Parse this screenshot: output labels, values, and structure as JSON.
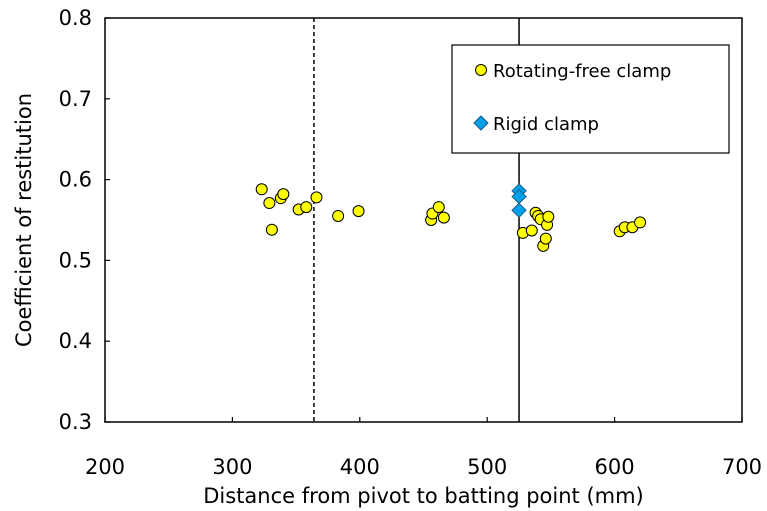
{
  "chart_data": {
    "type": "scatter",
    "title": "",
    "xlabel": "Distance from pivot to batting point (mm)",
    "ylabel": "Coefficient of restitution",
    "xlim": [
      200,
      700
    ],
    "ylim": [
      0.3,
      0.8
    ],
    "x_ticks": [
      "200",
      "300",
      "400",
      "500",
      "600",
      "700"
    ],
    "y_ticks": [
      "0.3",
      "0.4",
      "0.5",
      "0.6",
      "0.7",
      "0.8"
    ],
    "grid": false,
    "legend_position": "top-right",
    "reference_lines": [
      {
        "x": 364,
        "style": "dashed",
        "color": "#000000"
      },
      {
        "x": 525,
        "style": "solid",
        "color": "#000000"
      }
    ],
    "series": [
      {
        "name": "Rotating-free clamp",
        "marker": "circle",
        "color": "#ffff00",
        "points": [
          [
            323,
            0.588
          ],
          [
            329,
            0.571
          ],
          [
            331,
            0.538
          ],
          [
            338,
            0.577
          ],
          [
            340,
            0.582
          ],
          [
            352,
            0.563
          ],
          [
            358,
            0.566
          ],
          [
            366,
            0.578
          ],
          [
            383,
            0.555
          ],
          [
            399,
            0.561
          ],
          [
            456,
            0.55
          ],
          [
            457,
            0.558
          ],
          [
            462,
            0.566
          ],
          [
            466,
            0.553
          ],
          [
            528,
            0.534
          ],
          [
            535,
            0.537
          ],
          [
            538,
            0.559
          ],
          [
            540,
            0.555
          ],
          [
            542,
            0.551
          ],
          [
            544,
            0.518
          ],
          [
            546,
            0.527
          ],
          [
            547,
            0.544
          ],
          [
            548,
            0.554
          ],
          [
            604,
            0.536
          ],
          [
            608,
            0.541
          ],
          [
            614,
            0.541
          ],
          [
            620,
            0.547
          ]
        ]
      },
      {
        "name": "Rigid clamp",
        "marker": "diamond",
        "color": "#00a0e8",
        "points": [
          [
            525,
            0.586
          ],
          [
            525,
            0.579
          ],
          [
            525,
            0.562
          ]
        ]
      }
    ]
  }
}
